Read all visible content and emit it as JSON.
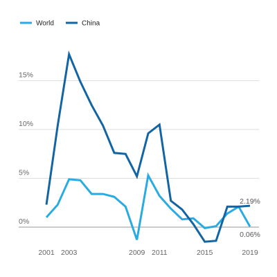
{
  "chart_data": {
    "type": "line",
    "title": "",
    "xlabel": "",
    "ylabel": "",
    "x": [
      2001,
      2002,
      2003,
      2004,
      2005,
      2006,
      2007,
      2008,
      2009,
      2010,
      2011,
      2012,
      2013,
      2014,
      2015,
      2016,
      2017,
      2018,
      2019
    ],
    "x_tick_values": [
      2001,
      2003,
      2009,
      2011,
      2015,
      2019
    ],
    "x_tick_labels": [
      "2001",
      "2003",
      "2009",
      "2011",
      "2015",
      "2019"
    ],
    "y_ticks": [
      0,
      5,
      10,
      15
    ],
    "y_tick_labels": [
      "0%",
      "5%",
      "10%",
      "15%"
    ],
    "ylim": [
      -2,
      19
    ],
    "grid": true,
    "legend_position": "top-left",
    "series": [
      {
        "name": "World",
        "color": "#29abe2",
        "values": [
          1.0,
          2.3,
          4.9,
          4.8,
          3.4,
          3.4,
          3.1,
          2.1,
          -1.3,
          5.3,
          3.2,
          1.9,
          0.8,
          0.9,
          -0.1,
          0.1,
          1.4,
          2.1,
          0.06
        ],
        "end_label": "0.06%"
      },
      {
        "name": "China",
        "color": "#1264a3",
        "values": [
          2.3,
          10.4,
          17.7,
          14.9,
          12.5,
          10.4,
          7.6,
          7.5,
          5.2,
          9.6,
          10.5,
          2.7,
          1.8,
          0.3,
          -1.5,
          -1.4,
          2.1,
          2.1,
          2.19
        ],
        "end_label": "2.19%"
      }
    ]
  }
}
